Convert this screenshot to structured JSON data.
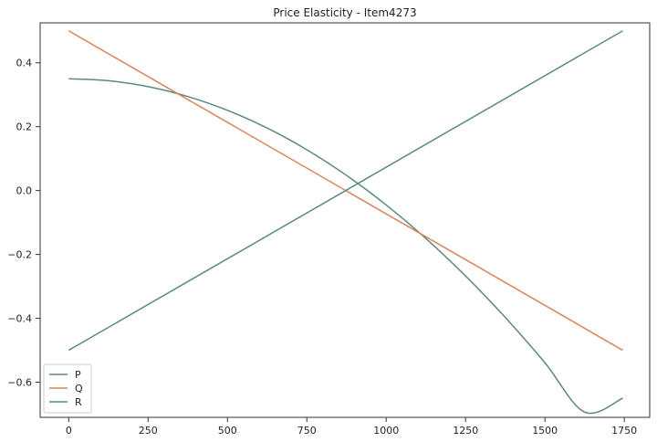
{
  "chart_data": {
    "type": "line",
    "title": "Price Elasticity - Item4273",
    "xlabel": "",
    "ylabel": "",
    "xlim": [
      -90,
      1830
    ],
    "ylim": [
      -0.71,
      0.525
    ],
    "xticks": [
      0,
      250,
      500,
      750,
      1000,
      1250,
      1500,
      1750
    ],
    "xtick_labels": [
      "0",
      "250",
      "500",
      "750",
      "1000",
      "1250",
      "1500",
      "1750"
    ],
    "yticks": [
      -0.6,
      -0.4,
      -0.2,
      0.0,
      0.2,
      0.4
    ],
    "ytick_labels": [
      "−0.6",
      "−0.4",
      "−0.2",
      "0.0",
      "0.2",
      "0.4"
    ],
    "grid": false,
    "legend_position": "lower-left",
    "series": [
      {
        "name": "P",
        "color": "#5b8a78",
        "x": [
          0,
          125,
          250,
          375,
          500,
          625,
          750,
          875,
          1000,
          1125,
          1250,
          1375,
          1500,
          1625,
          1745
        ],
        "y": [
          0.35,
          0.3438,
          0.3253,
          0.2944,
          0.2512,
          0.1956,
          0.1277,
          0.0474,
          -0.0452,
          -0.1501,
          -0.2674,
          -0.3971,
          -0.5392,
          -0.6937,
          -0.65
        ]
      },
      {
        "name": "Q",
        "color": "#d98357",
        "x": [
          0,
          1745
        ],
        "y": [
          0.5,
          -0.5
        ]
      },
      {
        "name": "R",
        "color": "#5b8a78",
        "x": [
          0,
          1745
        ],
        "y": [
          -0.5,
          0.5
        ]
      }
    ]
  }
}
